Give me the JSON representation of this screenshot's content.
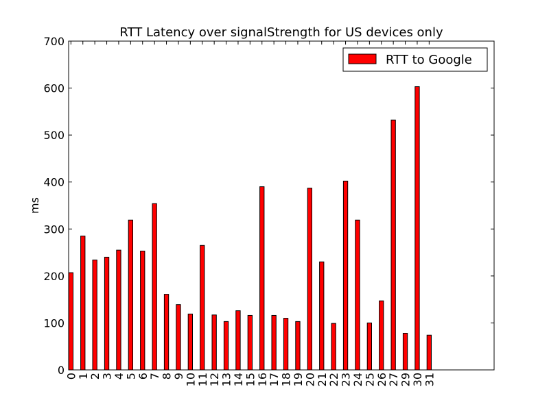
{
  "chart_data": {
    "type": "bar",
    "title": "RTT Latency over signalStrength for US devices only",
    "xlabel": "",
    "ylabel": "ms",
    "ylim": [
      0,
      700
    ],
    "yticks": [
      0,
      100,
      200,
      300,
      400,
      500,
      600,
      700
    ],
    "categories": [
      "0",
      "1",
      "2",
      "3",
      "4",
      "5",
      "6",
      "7",
      "8",
      "9",
      "10",
      "11",
      "12",
      "13",
      "14",
      "15",
      "16",
      "17",
      "18",
      "19",
      "20",
      "21",
      "22",
      "23",
      "24",
      "25",
      "26",
      "27",
      "29",
      "30",
      "31"
    ],
    "series": [
      {
        "name": "RTT to Google",
        "color": "#ff0000",
        "values": [
          207,
          285,
          234,
          240,
          255,
          319,
          253,
          354,
          161,
          139,
          119,
          265,
          117,
          103,
          126,
          116,
          390,
          116,
          110,
          103,
          387,
          230,
          99,
          402,
          319,
          100,
          147,
          532,
          78,
          603,
          74
        ]
      }
    ],
    "legend": {
      "position": "top-right"
    },
    "grid": false
  }
}
